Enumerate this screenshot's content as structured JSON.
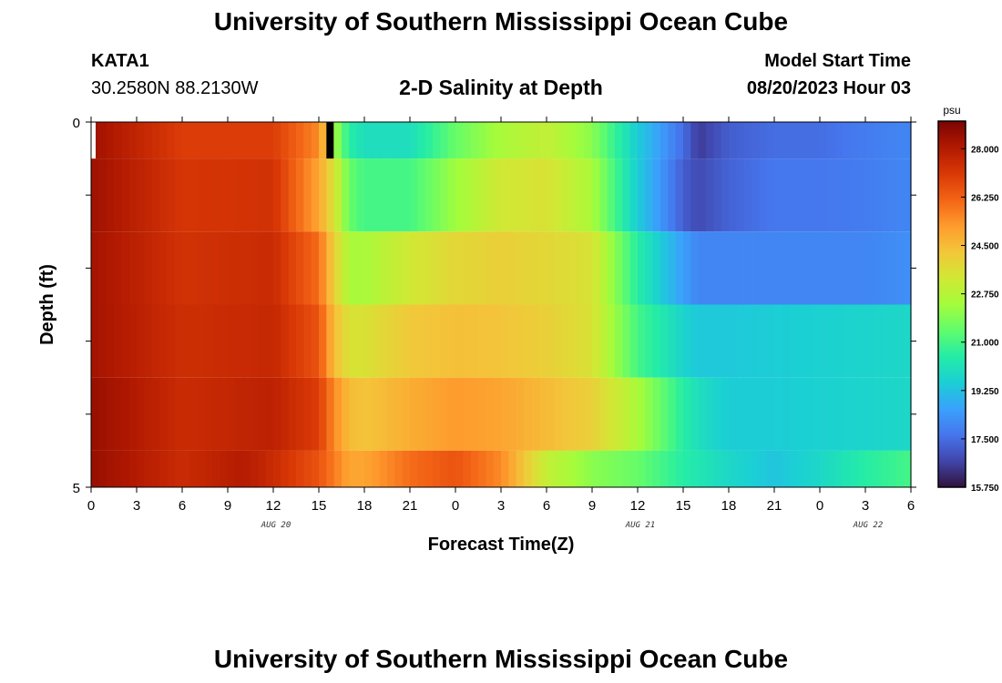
{
  "header": {
    "title": "University of Southern Mississippi Ocean Cube",
    "station_id": "KATA1",
    "station_coords": "30.2580N  88.2130W",
    "subtitle": "2-D Salinity at Depth",
    "model_start_label": "Model Start Time",
    "model_start_time": "08/20/2023 Hour 03"
  },
  "footer": {
    "title": "University of Southern Mississippi Ocean Cube"
  },
  "chart_data": {
    "type": "heatmap",
    "title": "2-D Salinity at Depth",
    "xlabel": "Forecast Time(Z)",
    "ylabel": "Depth (ft)",
    "x_tick_labels": [
      "0",
      "3",
      "6",
      "9",
      "12",
      "15",
      "18",
      "21",
      "0",
      "3",
      "6",
      "9",
      "12",
      "15",
      "18",
      "21",
      "0",
      "3",
      "6"
    ],
    "x_start_hour": 0,
    "x_end_hour": 54,
    "date_labels": [
      {
        "label": "AUG 20",
        "hour": 12
      },
      {
        "label": "AUG 21",
        "hour": 36
      },
      {
        "label": "AUG 22",
        "hour": 51
      }
    ],
    "y_tick_labels": [
      "0",
      "5"
    ],
    "ylim": [
      0,
      5
    ],
    "depth_layers": [
      0.5,
      1.5,
      2.5,
      3.5,
      4.5
    ],
    "colorbar": {
      "unit": "psu",
      "min": 15.75,
      "max": 29.0,
      "tick_labels": [
        "28.000",
        "26.250",
        "24.500",
        "22.750",
        "21.000",
        "19.250",
        "17.500",
        "15.750"
      ],
      "tick_values": [
        28.0,
        26.25,
        24.5,
        22.75,
        21.0,
        19.25,
        17.5,
        15.75
      ],
      "colors": [
        "#30123b",
        "#4145ab",
        "#4675ed",
        "#39a2fc",
        "#1bcfd4",
        "#24eca6",
        "#61fc6c",
        "#a4fc3b",
        "#d1e834",
        "#f3c63a",
        "#fe9b2d",
        "#f36315",
        "#d93806",
        "#b11901",
        "#7a0402"
      ]
    },
    "series": [
      {
        "name": "0.5",
        "hours": [
          0,
          6,
          12,
          15,
          16,
          17,
          18,
          21,
          24,
          27,
          30,
          33,
          36,
          39,
          40,
          42,
          45,
          48,
          51,
          54
        ],
        "values": [
          28.4,
          27.0,
          27.0,
          25.5,
          22.5,
          20.5,
          20.0,
          20.0,
          21.5,
          22.5,
          23.0,
          22.0,
          19.5,
          17.5,
          16.5,
          17.2,
          17.5,
          17.5,
          17.8,
          18.0
        ]
      },
      {
        "name": "1.5",
        "hours": [
          0,
          6,
          12,
          15,
          16,
          17,
          18,
          21,
          24,
          27,
          30,
          33,
          36,
          39,
          40,
          42,
          45,
          48,
          51,
          54
        ],
        "values": [
          28.4,
          27.2,
          27.3,
          25.0,
          23.5,
          21.5,
          21.0,
          21.0,
          22.3,
          23.3,
          23.5,
          22.5,
          19.5,
          17.2,
          16.8,
          17.3,
          17.7,
          17.7,
          17.8,
          18.0
        ]
      },
      {
        "name": "2.5",
        "hours": [
          0,
          6,
          12,
          15,
          16,
          17,
          18,
          21,
          24,
          27,
          30,
          33,
          36,
          39,
          40,
          42,
          45,
          48,
          51,
          54
        ],
        "values": [
          28.3,
          27.3,
          27.5,
          26.0,
          24.0,
          22.5,
          22.5,
          23.3,
          23.8,
          24.0,
          23.8,
          23.5,
          20.5,
          18.5,
          18.0,
          18.0,
          18.0,
          18.0,
          18.0,
          18.2
        ]
      },
      {
        "name": "3.5",
        "hours": [
          0,
          6,
          12,
          15,
          16,
          17,
          18,
          21,
          24,
          27,
          30,
          33,
          36,
          39,
          40,
          42,
          45,
          48,
          51,
          54
        ],
        "values": [
          28.3,
          27.4,
          27.6,
          26.5,
          24.5,
          23.5,
          23.5,
          24.2,
          24.4,
          24.3,
          24.0,
          23.5,
          21.0,
          19.7,
          19.4,
          19.4,
          19.5,
          19.6,
          19.7,
          19.8
        ]
      },
      {
        "name": "4.5",
        "hours": [
          0,
          6,
          12,
          15,
          16,
          17,
          18,
          21,
          24,
          27,
          30,
          33,
          36,
          39,
          40,
          42,
          45,
          48,
          51,
          54
        ],
        "values": [
          28.5,
          27.5,
          27.8,
          27.0,
          25.5,
          24.5,
          24.3,
          24.8,
          25.2,
          25.0,
          24.5,
          24.0,
          22.5,
          20.5,
          20.0,
          19.5,
          19.5,
          19.6,
          19.7,
          19.8
        ]
      },
      {
        "name": "5.0",
        "hours": [
          0,
          6,
          10,
          12,
          15,
          17,
          18,
          21,
          24,
          27,
          30,
          33,
          36,
          39,
          42,
          45,
          48,
          51,
          54
        ],
        "values": [
          28.5,
          27.5,
          28.0,
          27.5,
          26.5,
          25.0,
          25.0,
          26.0,
          26.5,
          25.5,
          23.0,
          22.0,
          21.5,
          20.5,
          19.8,
          19.3,
          19.8,
          20.5,
          21.0
        ]
      }
    ],
    "annotations": [
      {
        "label": "data gap",
        "hour": 15.5,
        "depth_range": [
          0,
          0.5
        ],
        "color": "#000000"
      },
      {
        "label": "missing",
        "hour": 0,
        "depth_range": [
          0,
          0.5
        ],
        "color": "#ffffff"
      }
    ]
  }
}
